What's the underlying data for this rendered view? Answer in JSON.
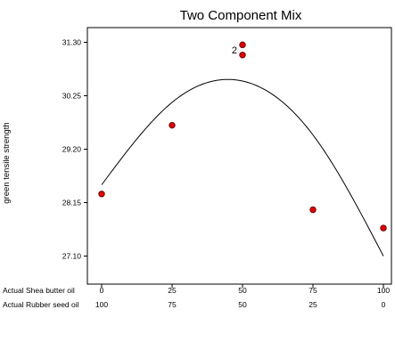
{
  "chart_data": {
    "type": "scatter",
    "title": "Two Component Mix",
    "ylabel": "green tensile strength",
    "ylim": [
      26.9,
      31.6
    ],
    "x_axes": [
      {
        "label": "Actual Shea butter oil",
        "ticks": [
          "0",
          "25",
          "50",
          "75",
          "100"
        ]
      },
      {
        "label": "Actual Rubber seed oil",
        "ticks": [
          "100",
          "75",
          "50",
          "25",
          "0"
        ]
      }
    ],
    "xlim": [
      0,
      100
    ],
    "yticks": [
      27.1,
      28.15,
      29.2,
      30.25,
      31.3
    ],
    "ytick_labels": [
      "27.10",
      "28.15",
      "29.20",
      "30.25",
      "31.30"
    ],
    "series": [
      {
        "points": [
          {
            "x": 0,
            "y": 28.32
          },
          {
            "x": 25,
            "y": 29.67
          },
          {
            "x": 50,
            "y": 31.25
          },
          {
            "x": 50,
            "y": 31.05
          },
          {
            "x": 75,
            "y": 28.01
          },
          {
            "x": 100,
            "y": 27.65
          }
        ]
      }
    ],
    "fit_curve": {
      "points": [
        {
          "x": 0,
          "y": 28.5
        },
        {
          "x": 25,
          "y": 30.12
        },
        {
          "x": 45,
          "y": 30.57
        },
        {
          "x": 75,
          "y": 29.48
        },
        {
          "x": 100,
          "y": 27.1
        }
      ]
    },
    "annotations": [
      {
        "text": "2",
        "x": 50,
        "y": 31.15
      }
    ],
    "colors": {
      "point_fill": "#dd0000",
      "point_stroke": "#550000",
      "curve": "#000000",
      "frame": "#000000"
    },
    "grid": false
  }
}
